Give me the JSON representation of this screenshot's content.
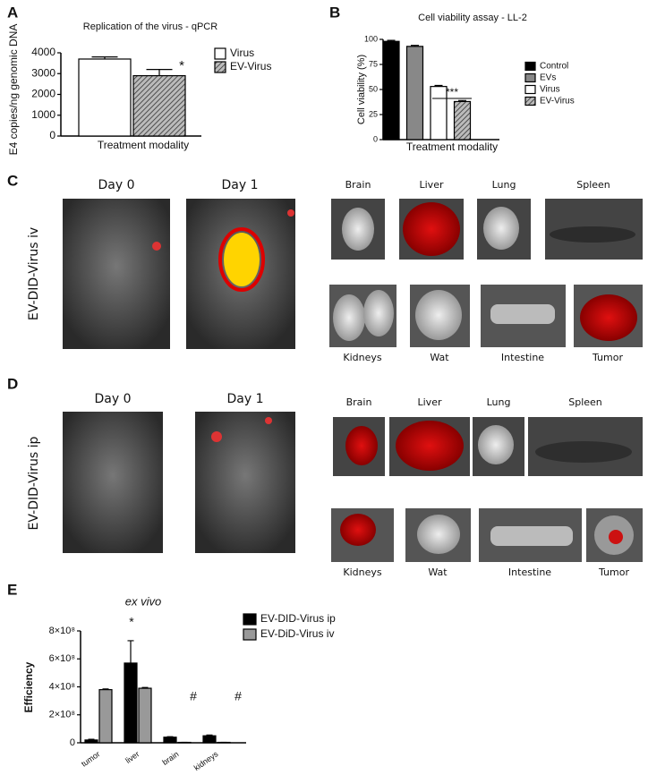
{
  "chart_data": [
    {
      "type": "bar",
      "title": "Replication of the virus - qPCR",
      "ylabel": "E4 copies/ng genomic DNA",
      "xlabel": "Treatment modality",
      "categories": [
        null
      ],
      "series": [
        {
          "name": "Virus",
          "color": "#ffffff",
          "values": [
            3700
          ],
          "errors": [
            100
          ]
        },
        {
          "name": "EV-Virus",
          "color": "#888888",
          "hatch": true,
          "values": [
            2900
          ],
          "errors": [
            300
          ]
        }
      ],
      "annotations": [
        "*"
      ],
      "ylim": [
        0,
        4000
      ],
      "yticks": [
        0,
        1000,
        2000,
        3000,
        4000
      ],
      "grid": false
    },
    {
      "type": "bar",
      "title": "Cell viability assay - LL-2",
      "ylabel": "Cell viability (%)",
      "xlabel": "Treatment  modality",
      "categories": [
        null
      ],
      "series": [
        {
          "name": "Control",
          "color": "#000000",
          "values": [
            98
          ],
          "errors": [
            1
          ]
        },
        {
          "name": "EVs",
          "color": "#888888",
          "values": [
            93
          ],
          "errors": [
            1
          ]
        },
        {
          "name": "Virus",
          "color": "#ffffff",
          "values": [
            53
          ],
          "errors": [
            1
          ]
        },
        {
          "name": "EV-Virus",
          "color": "#888888",
          "hatch": true,
          "values": [
            38
          ],
          "errors": [
            1
          ]
        }
      ],
      "annotations": [
        "***"
      ],
      "ylim": [
        0,
        100
      ],
      "yticks": [
        0,
        25,
        50,
        75,
        100
      ],
      "grid": false
    },
    {
      "type": "bar",
      "title": "ex vivo",
      "ylabel": "Efficiency",
      "categories": [
        "tumor",
        "liver",
        "brain",
        "kidneys"
      ],
      "series": [
        {
          "name": "EV-DID-Virus ip",
          "color": "#000000",
          "values": [
            20000000,
            570000000,
            40000000,
            50000000
          ],
          "errors": [
            5000000,
            160000000,
            3000000,
            5000000
          ]
        },
        {
          "name": "EV-DiD-Virus iv",
          "color": "#999999",
          "values": [
            380000000,
            390000000,
            3000000,
            3000000
          ],
          "errors": [
            5000000,
            5000000,
            0,
            0
          ]
        }
      ],
      "annotations": [
        "*",
        "#",
        "#"
      ],
      "ylim": [
        0,
        800000000
      ],
      "yticks": [
        0,
        {
          "value": 200000000,
          "label": "2×10⁸"
        },
        {
          "value": 400000000,
          "label": "4×10⁸"
        },
        {
          "value": 600000000,
          "label": "6×10⁸"
        },
        {
          "value": 800000000,
          "label": "8×10⁸"
        }
      ],
      "grid": false
    }
  ],
  "panel_labels": [
    "A",
    "B",
    "C",
    "D",
    "E"
  ],
  "imaging": [
    {
      "condition": "EV-DID-Virus  iv",
      "days": [
        "Day 0",
        "Day 1"
      ],
      "organs_top": [
        "Brain",
        "Liver",
        "Lung",
        "Spleen"
      ],
      "organs_bottom": [
        "Kidneys",
        "Wat",
        "Intestine",
        "Tumor"
      ]
    },
    {
      "condition": "EV-DID-Virus  ip",
      "days": [
        "Day 0",
        "Day 1"
      ],
      "organs_top": [
        "Brain",
        "Liver",
        "Lung",
        "Spleen"
      ],
      "organs_bottom": [
        "Kidneys",
        "Wat",
        "Intestine",
        "Tumor"
      ]
    }
  ]
}
